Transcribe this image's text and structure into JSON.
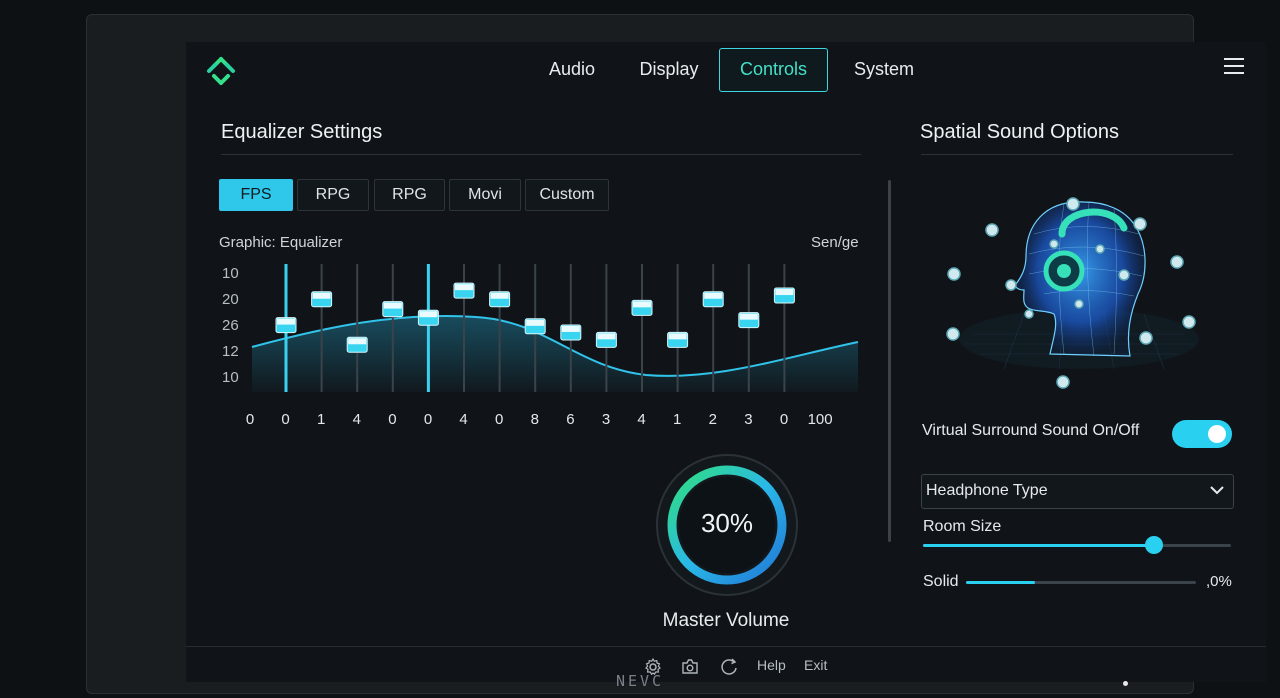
{
  "nav": {
    "tabs": [
      {
        "label": "Audio"
      },
      {
        "label": "Display"
      },
      {
        "label": "Controls"
      },
      {
        "label": "System"
      }
    ],
    "active_tab": "Controls"
  },
  "equalizer": {
    "title": "Equalizer Settings",
    "presets": [
      {
        "label": "FPS"
      },
      {
        "label": "RPG"
      },
      {
        "label": "RPG"
      },
      {
        "label": "Movi"
      },
      {
        "label": "Custom"
      }
    ],
    "active_preset": "FPS",
    "graph_label": "Graphic: Equalizer",
    "right_label": "Sen/ge",
    "y_labels": [
      "10",
      "20",
      "26",
      "12",
      "10"
    ],
    "bands": [
      {
        "label": "0"
      },
      {
        "label": "0"
      },
      {
        "label": "1"
      },
      {
        "label": "4"
      },
      {
        "label": "0"
      },
      {
        "label": "0"
      },
      {
        "label": "4"
      },
      {
        "label": "0"
      },
      {
        "label": "8"
      },
      {
        "label": "6"
      },
      {
        "label": "3"
      },
      {
        "label": "4"
      },
      {
        "label": "1"
      },
      {
        "label": "2"
      },
      {
        "label": "3"
      },
      {
        "label": "0"
      },
      {
        "label": "100"
      }
    ],
    "slider_levels": [
      0.54,
      0.75,
      0.38,
      0.67,
      0.6,
      0.82,
      0.75,
      0.53,
      0.48,
      0.42,
      0.68,
      0.42,
      0.75,
      0.58,
      0.78
    ]
  },
  "master_volume": {
    "value_text": "30%",
    "label": "Master Volume"
  },
  "spatial": {
    "title": "Spatial Sound Options",
    "surround_label": "Virtual Surround Sound On/Off",
    "surround_on": true,
    "headphone_type_label": "Headphone Type",
    "room_size_label": "Room Size",
    "room_size_level": 0.75,
    "solid_label": "Solid",
    "solid_value": ",0%",
    "solid_level": 0.3
  },
  "footer": {
    "help": "Help",
    "exit": "Exit"
  },
  "brand": "NEVC",
  "colors": {
    "accent": "#2ad0f0",
    "accent_green": "#44e0c8",
    "background": "#101418"
  }
}
